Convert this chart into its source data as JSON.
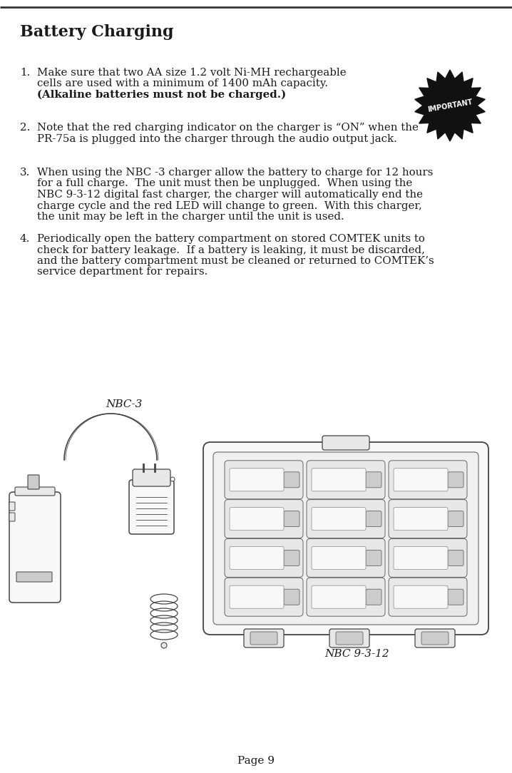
{
  "title": "Battery Charging",
  "background_color": "#ffffff",
  "text_color": "#1a1a1a",
  "page_number": "Page 9",
  "line1_num": "1.",
  "line1a": "Make sure that two AA size 1.2 volt Ni-MH rechargeable",
  "line1b": "cells are used with a minimum of 1400 mAh capacity.",
  "line1c": "(Alkaline batteries must not be charged.)",
  "line2_num": "2.",
  "line2a": "Note that the red charging indicator on the charger is “ON” when the",
  "line2b": "PR-75a is plugged into the charger through the audio output jack.",
  "line3_num": "3.",
  "line3a": "When using the NBC -3 charger allow the battery to charge for 12 hours",
  "line3b": "for a full charge.  The unit must then be unplugged.  When using the",
  "line3c": "NBC 9-3-12 digital fast charger, the charger will automatically end the",
  "line3d": "charge cycle and the red LED will change to green.  With this charger,",
  "line3e": "the unit may be left in the charger until the unit is used.",
  "line4_num": "4.",
  "line4a": "Periodically open the battery compartment on stored COMTEK units to",
  "line4b": "check for battery leakage.  If a battery is leaking, it must be discarded,",
  "line4c": "and the battery compartment must be cleaned or returned to COMTEK’s",
  "line4d": "service department for repairs.",
  "nbc3_label": "NBC-3",
  "nbc912_label": "NBC 9-3-12",
  "important_text": "IMPORTANT",
  "lw": 1.0,
  "edge_color": "#444444",
  "light_fill": "#f8f8f8",
  "mid_fill": "#e8e8e8",
  "dark_fill": "#cccccc"
}
